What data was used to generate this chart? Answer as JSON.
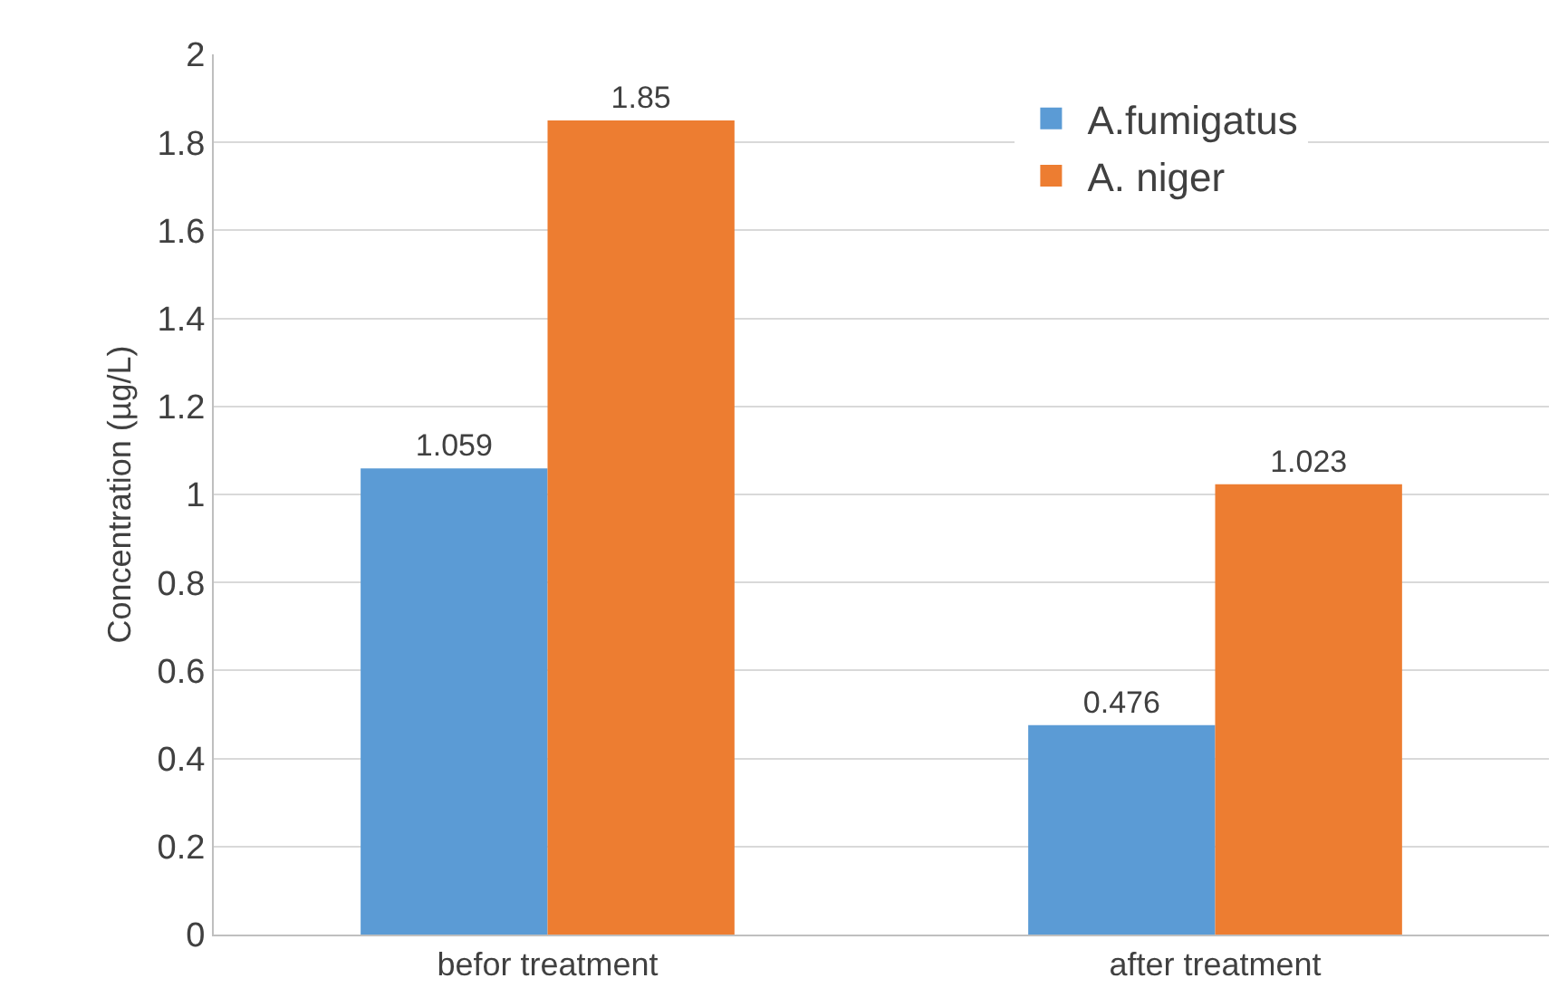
{
  "chart_data": {
    "type": "bar",
    "categories": [
      "befor treatment",
      "after treatment"
    ],
    "ylabel": "Concentration (µg/L)",
    "series": [
      {
        "name": "A.fumigatus",
        "color": "#5b9bd5",
        "values": [
          1.059,
          0.476
        ]
      },
      {
        "name": "A. niger",
        "color": "#ed7d31",
        "values": [
          1.85,
          1.023
        ]
      }
    ],
    "ylim": [
      0,
      2
    ],
    "yticks": [
      0,
      0.2,
      0.4,
      0.6,
      0.8,
      1,
      1.2,
      1.4,
      1.6,
      1.8,
      2
    ],
    "grid": "y",
    "legend": "top right",
    "data_labels": true
  }
}
